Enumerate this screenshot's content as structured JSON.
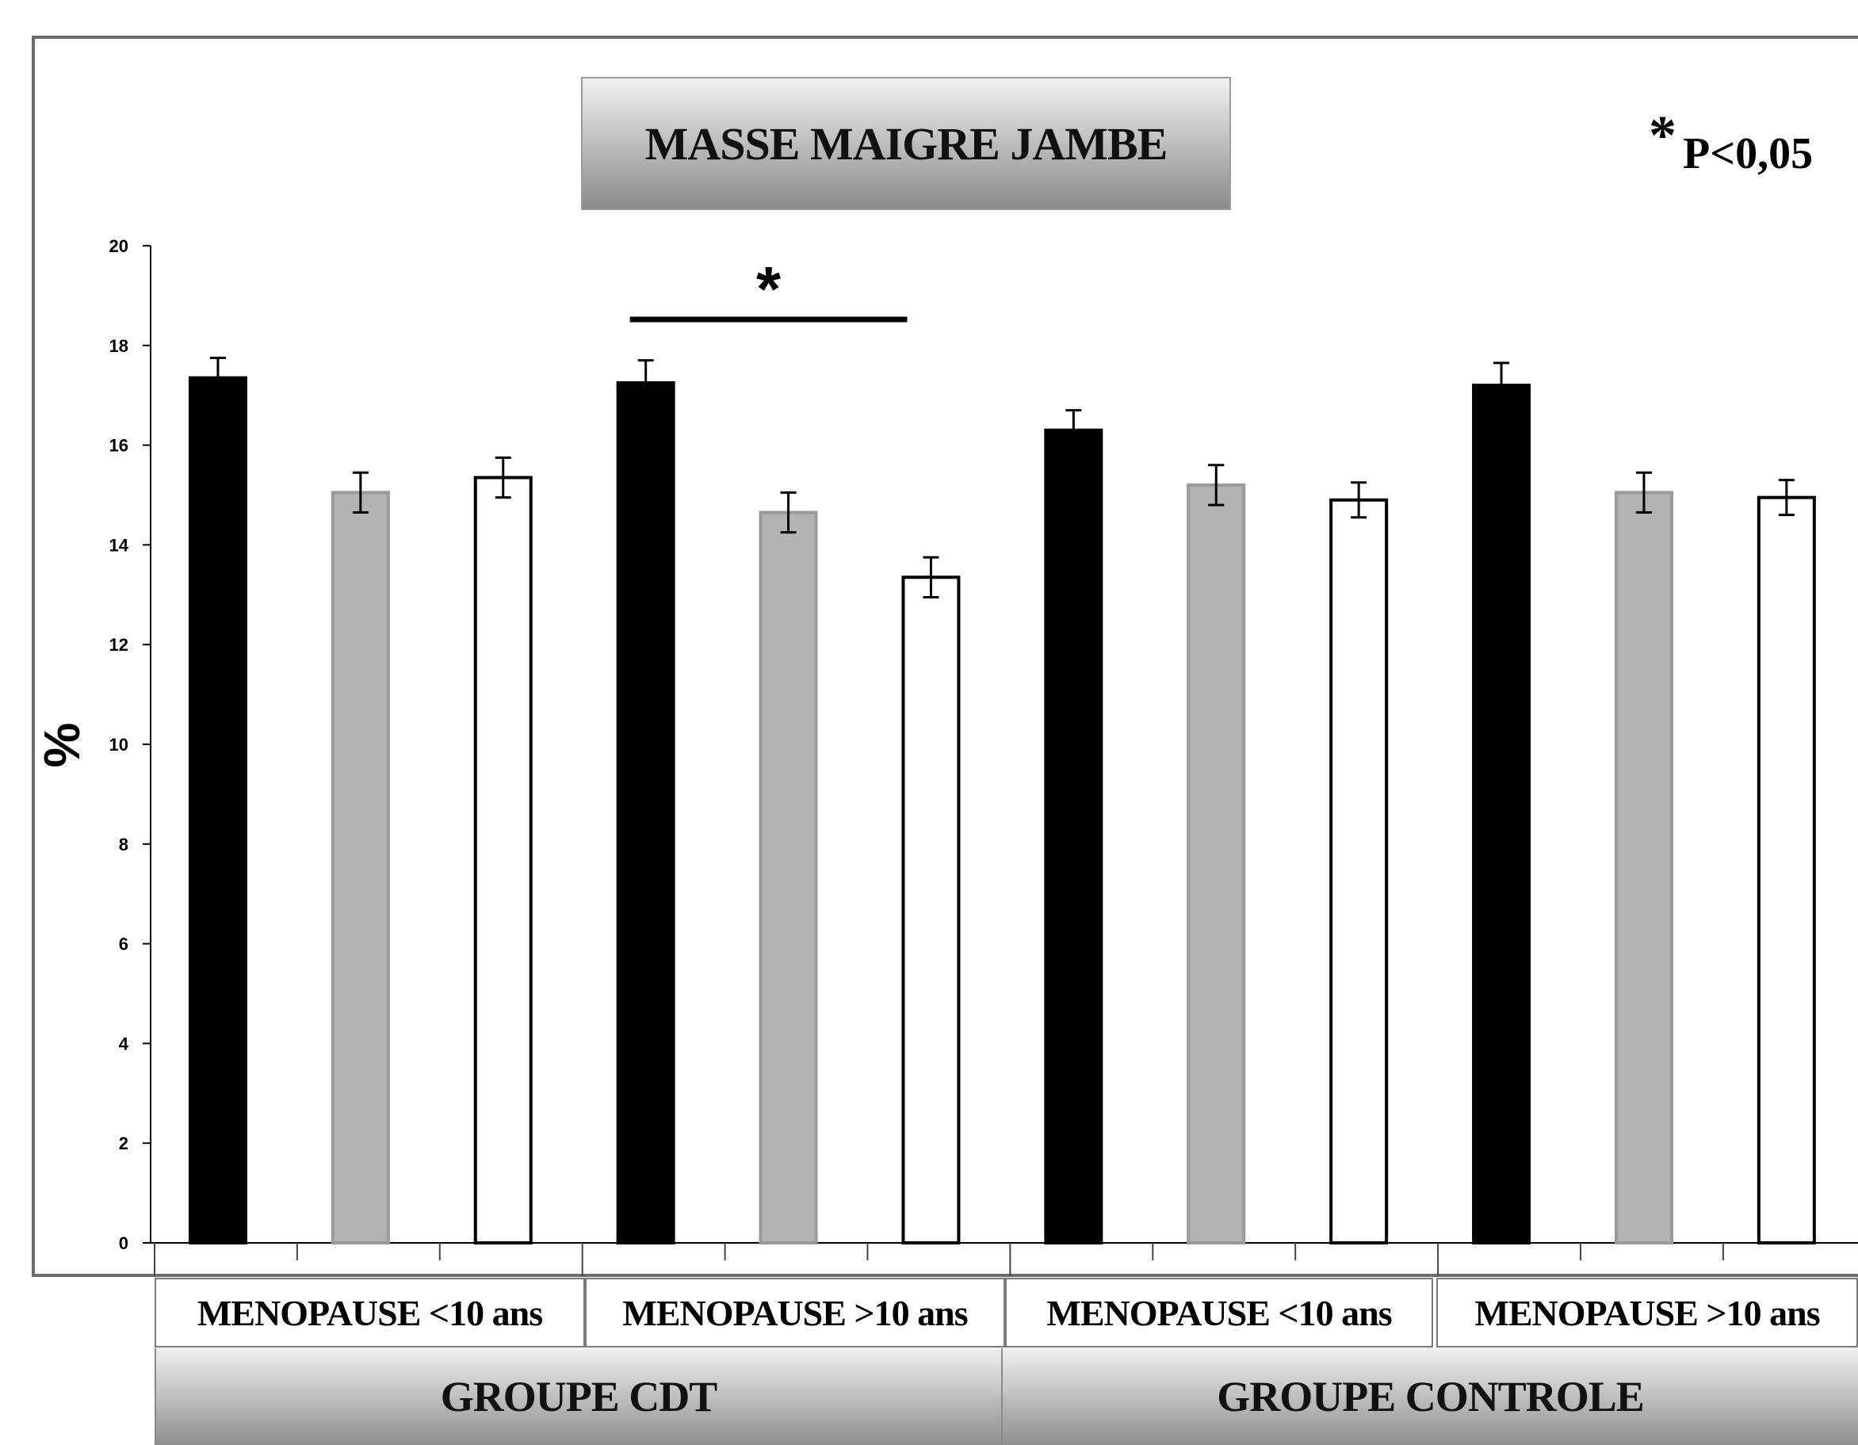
{
  "chart_data": {
    "type": "bar",
    "title": "MASSE MAIGRE JAMBE",
    "ylabel": "%",
    "xlabel": "",
    "ylim": [
      0,
      20
    ],
    "yticks": [
      "0",
      "2",
      "4",
      "6",
      "8",
      "10",
      "12",
      "14",
      "16",
      "18",
      "20"
    ],
    "grid": false,
    "annotation": "* P<0,05",
    "significance": {
      "symbol": "*",
      "from_bar": 3,
      "to_bar": 5
    },
    "groups": [
      {
        "label": "GROUPE CDT",
        "subgroups": [
          "MENOPAUSE <10 ans",
          "MENOPAUSE >10 ans"
        ]
      },
      {
        "label": "GROUPE CONTROLE",
        "subgroups": [
          "MENOPAUSE <10 ans",
          "MENOPAUSE >10 ans"
        ]
      }
    ],
    "bar_fills": [
      "#000000",
      "#b3b3b3",
      "#ffffff"
    ],
    "bars": [
      {
        "value": 17.35,
        "error": 0.4
      },
      {
        "value": 15.05,
        "error": 0.4
      },
      {
        "value": 15.35,
        "error": 0.4
      },
      {
        "value": 17.25,
        "error": 0.45
      },
      {
        "value": 14.65,
        "error": 0.4
      },
      {
        "value": 13.35,
        "error": 0.4
      },
      {
        "value": 16.3,
        "error": 0.4
      },
      {
        "value": 15.2,
        "error": 0.4
      },
      {
        "value": 14.9,
        "error": 0.35
      },
      {
        "value": 17.2,
        "error": 0.45
      },
      {
        "value": 15.05,
        "error": 0.4
      },
      {
        "value": 14.95,
        "error": 0.35
      }
    ]
  }
}
